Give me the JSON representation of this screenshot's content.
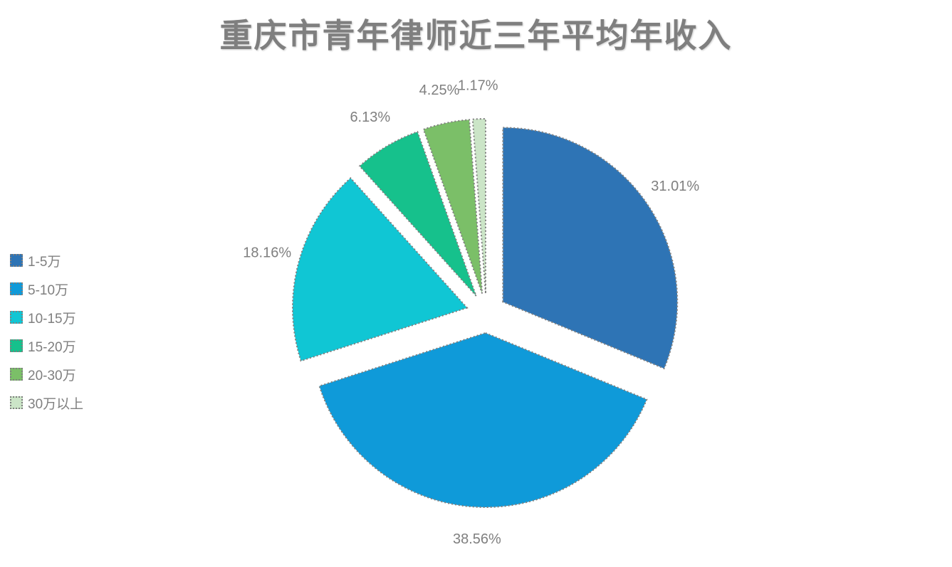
{
  "page": {
    "background_color": "#ffffff"
  },
  "chart_data": {
    "type": "pie",
    "title": "重庆市青年律师近三年平均年收入",
    "categories": [
      "1-5万",
      "5-10万",
      "10-15万",
      "15-20万",
      "20-30万",
      "30万以上"
    ],
    "values": [
      31.01,
      38.56,
      18.16,
      6.13,
      4.25,
      1.17
    ],
    "labels": [
      "31.01%",
      "38.56%",
      "18.16%",
      "6.13%",
      "4.25%",
      "1.17%"
    ],
    "colors": [
      "#2e74b5",
      "#0f9ad9",
      "#10c6d4",
      "#16c18c",
      "#7bbf68",
      "#cbe5c7"
    ],
    "legend_position": "left",
    "start_angle_deg": 0,
    "direction": "clockwise",
    "exploded": true,
    "slice_border_color": "#7f7f7f",
    "slice_border_style": "dotted",
    "label_color": "#7f7f7f",
    "title_color": "#7f7f7f"
  }
}
